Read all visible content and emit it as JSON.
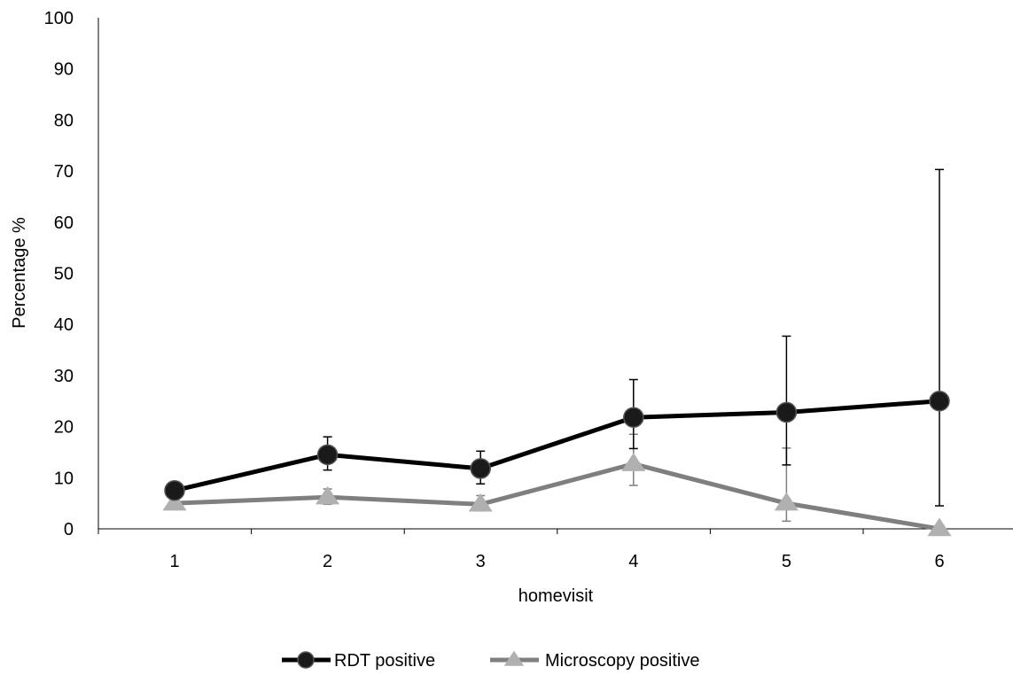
{
  "chart_data": {
    "type": "line",
    "title": "",
    "xlabel": "homevisit",
    "ylabel": "Percentage %",
    "categories": [
      "1",
      "2",
      "3",
      "4",
      "5",
      "6"
    ],
    "yticks": [
      "0",
      "10",
      "20",
      "30",
      "40",
      "50",
      "60",
      "70",
      "80",
      "90",
      "100"
    ],
    "ylim": [
      0,
      100
    ],
    "grid": false,
    "legend_position": "bottom",
    "series": [
      {
        "name": "RDT positive",
        "marker": "circle",
        "color": "#000000",
        "marker_fill": "#1a1a1a",
        "values": [
          7.5,
          14.5,
          11.8,
          21.8,
          22.8,
          25.0
        ],
        "error_low": [
          6.0,
          11.5,
          8.8,
          15.7,
          12.5,
          4.5
        ],
        "error_high": [
          9.2,
          18.0,
          15.2,
          29.2,
          37.7,
          70.3
        ]
      },
      {
        "name": "Microscopy positive",
        "marker": "triangle",
        "color": "#7f7f7f",
        "marker_fill": "#b0b0b0",
        "values": [
          5.0,
          6.2,
          4.8,
          12.7,
          5.0,
          0.0
        ],
        "error_low": [
          4.0,
          4.8,
          3.5,
          8.5,
          1.5,
          0.0
        ],
        "error_high": [
          6.0,
          7.8,
          6.5,
          18.5,
          15.8,
          0.0
        ]
      }
    ]
  }
}
